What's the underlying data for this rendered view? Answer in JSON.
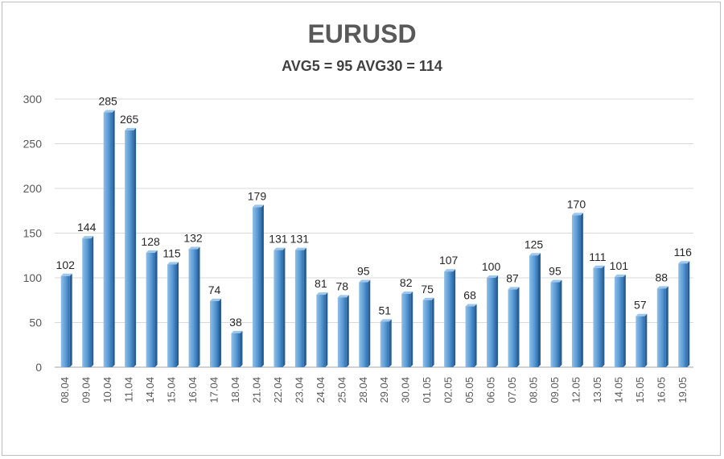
{
  "chart_data": {
    "type": "bar",
    "title": "EURUSD",
    "subtitle": "AVG5 = 95 AVG30 = 114",
    "xlabel": "",
    "ylabel": "",
    "ylim": [
      0,
      300
    ],
    "yticks": [
      0,
      50,
      100,
      150,
      200,
      250,
      300
    ],
    "grid": true,
    "bar_color": "#5b9bd5",
    "categories": [
      "08.04",
      "09.04",
      "10.04",
      "11.04",
      "14.04",
      "15.04",
      "16.04",
      "17.04",
      "18.04",
      "21.04",
      "22.04",
      "23.04",
      "24.04",
      "25.04",
      "28.04",
      "29.04",
      "30.04",
      "01.05",
      "02.05",
      "05.05",
      "06.05",
      "07.05",
      "08.05",
      "09.05",
      "12.05",
      "13.05",
      "14.05",
      "15.05",
      "16.05",
      "19.05"
    ],
    "values": [
      102,
      144,
      285,
      265,
      128,
      115,
      132,
      74,
      38,
      179,
      131,
      131,
      81,
      78,
      95,
      51,
      82,
      75,
      107,
      68,
      100,
      87,
      125,
      95,
      170,
      111,
      101,
      57,
      88,
      116
    ]
  }
}
